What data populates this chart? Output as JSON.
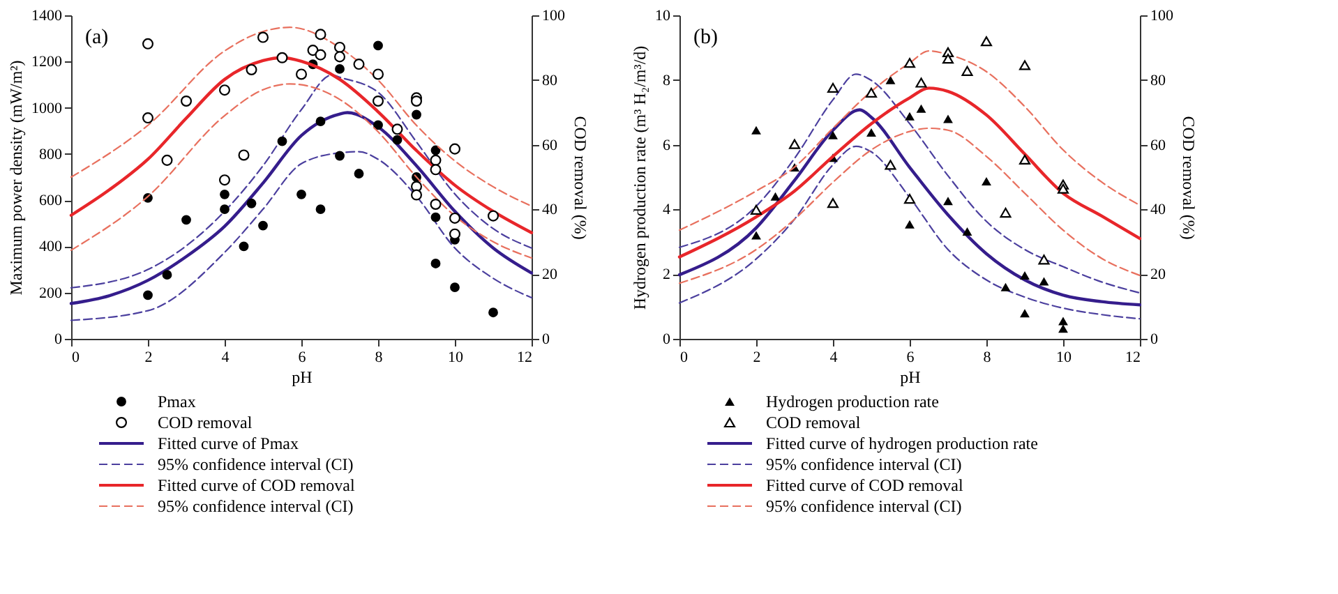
{
  "chart_data": [
    {
      "type": "scatter",
      "annotations": [
        "(a)"
      ],
      "xlabel": "pH",
      "ylabel": "Maximum power density (mW/m²)",
      "y2label": "COD removal (%)",
      "xlim": [
        0,
        12
      ],
      "xticks": [
        0,
        2,
        4,
        6,
        8,
        10,
        12
      ],
      "ylim": [
        0,
        1400
      ],
      "yticks": [
        0,
        200,
        400,
        600,
        800,
        1000,
        1200,
        1400
      ],
      "y2lim": [
        0,
        100
      ],
      "y2ticks": [
        0,
        20,
        40,
        60,
        80,
        100
      ],
      "grid": false,
      "legend": "bottom",
      "series": [
        {
          "name": "Pmax",
          "color": "#000000",
          "marker": "circle",
          "x": [
            2,
            2,
            2.5,
            3,
            4,
            4,
            4.5,
            4.7,
            5,
            5.5,
            6,
            6.3,
            6.5,
            6.5,
            7,
            7,
            7.5,
            8,
            8,
            8.5,
            9,
            9,
            9.5,
            9.5,
            9.5,
            10,
            10,
            11
          ],
          "values": [
            610,
            189,
            277,
            515,
            625,
            561,
            400,
            586,
            490,
            855,
            625,
            1188,
            941,
            561,
            792,
            1168,
            715,
            1269,
            925,
            861,
            970,
            700,
            816,
            526,
            326,
            429,
            223,
            114
          ]
        },
        {
          "name": "COD removal",
          "color": "#000000",
          "marker": "circle",
          "axis": "y2",
          "x": [
            2,
            2,
            2.5,
            3,
            4,
            4,
            4.5,
            4.7,
            5,
            5.5,
            6,
            6.3,
            6.5,
            6.5,
            7,
            7,
            7.5,
            8,
            8,
            8.5,
            9,
            9,
            9,
            9,
            9.5,
            9.5,
            9.5,
            10,
            10,
            10,
            11
          ],
          "values": [
            91.2,
            68.3,
            55.2,
            73.5,
            76.9,
            49.1,
            56.8,
            83.2,
            93.2,
            86.9,
            81.8,
            89.2,
            94.1,
            87.8,
            90.1,
            87.2,
            84.9,
            81.8,
            73.5,
            64.8,
            74.5,
            73.5,
            47.1,
            44.5,
            55.2,
            52.3,
            41.6,
            58.7,
            37.3,
            32.4,
            38
          ]
        },
        {
          "type": "line",
          "name": "Fitted curve of Pmax",
          "color": "#351d8c",
          "line_style": "solid",
          "x": [
            0,
            1,
            2,
            3,
            4,
            5,
            6,
            7,
            7.2,
            8,
            9,
            10,
            11,
            12
          ],
          "values": [
            153,
            187,
            253,
            356,
            487,
            674,
            880,
            973,
            979,
            917,
            749,
            552,
            393,
            285
          ]
        },
        {
          "type": "line",
          "name": "95% confidence interval (CI)",
          "color": "#4b3f9e",
          "line_style": "dashed",
          "x": [
            0,
            2,
            4,
            5,
            6,
            6.8,
            7,
            8,
            9,
            10,
            11,
            12
          ],
          "values": [
            221,
            300,
            552,
            749,
            992,
            1142,
            1132,
            1067,
            852,
            627,
            477,
            393
          ]
        },
        {
          "type": "line",
          "color": "#4b3f9e",
          "line_style": "dashed",
          "x": [
            0,
            2,
            4,
            5,
            6,
            7,
            7.5,
            8,
            9,
            10,
            11,
            12
          ],
          "values": [
            80,
            122,
            374,
            561,
            758,
            805,
            810,
            777,
            617,
            393,
            262,
            178
          ]
        },
        {
          "type": "line",
          "name": "Fitted curve of COD removal",
          "color": "#e8262a",
          "line_style": "solid",
          "axis": "y2",
          "x": [
            0,
            1,
            2,
            3,
            4,
            5,
            5.5,
            6,
            7,
            8,
            9,
            10,
            11,
            12
          ],
          "values": [
            38.2,
            46.1,
            55.5,
            68.2,
            80.2,
            86,
            86.9,
            85.8,
            80.2,
            70.2,
            58.2,
            47.5,
            39.4,
            32.8
          ]
        },
        {
          "type": "line",
          "name": "95% confidence interval (CI)",
          "color": "#e8705e",
          "line_style": "dashed",
          "axis": "y2",
          "x": [
            0,
            2,
            4,
            5,
            5.7,
            7,
            8,
            9,
            10,
            11,
            12
          ],
          "values": [
            50,
            66,
            89,
            95,
            96.3,
            90,
            80,
            66,
            55,
            47,
            41
          ]
        },
        {
          "type": "line",
          "color": "#e8705e",
          "line_style": "dashed",
          "axis": "y2",
          "x": [
            0,
            2,
            4,
            5,
            5.7,
            7,
            8,
            9,
            10,
            11,
            12
          ],
          "values": [
            27.4,
            44,
            69,
            77,
            78.8,
            74,
            64,
            50,
            38,
            30,
            25
          ]
        }
      ]
    },
    {
      "type": "scatter",
      "annotations": [
        "(b)"
      ],
      "xlabel": "pH",
      "ylabel": "Hydrogen production rate (m³ H₂/m³/d)",
      "y2label": "COD removal (%)",
      "xlim": [
        0,
        12
      ],
      "xticks": [
        0,
        2,
        4,
        6,
        8,
        10,
        12
      ],
      "ylim": [
        0,
        10
      ],
      "yticks": [
        0,
        2,
        4,
        6,
        8,
        10
      ],
      "y2lim": [
        0,
        100
      ],
      "y2ticks": [
        0,
        20,
        40,
        60,
        80,
        100
      ],
      "grid": false,
      "legend": "bottom",
      "series": [
        {
          "name": "Hydrogen production rate",
          "color": "#000000",
          "marker": "triangle",
          "x": [
            2,
            2,
            2.5,
            3,
            4,
            4,
            5,
            5.5,
            6,
            6,
            6.3,
            7,
            7,
            7.5,
            8,
            8.5,
            9,
            9,
            9.5,
            10,
            10
          ],
          "values": [
            6.45,
            3.2,
            4.4,
            5.3,
            6.3,
            5.6,
            6.38,
            8,
            6.88,
            3.54,
            7.12,
            6.8,
            4.26,
            3.32,
            4.87,
            1.6,
            1.96,
            0.79,
            1.78,
            0.55,
            0.32
          ]
        },
        {
          "name": "COD removal",
          "color": "#000000",
          "marker": "triangle",
          "axis": "y2",
          "x": [
            2,
            3,
            4,
            4,
            5,
            5.5,
            6,
            6,
            6.3,
            7,
            7,
            7.5,
            8,
            8.5,
            9,
            9,
            9.5,
            10,
            10
          ],
          "values": [
            39.9,
            60.2,
            77.6,
            42,
            76.1,
            53.8,
            85.3,
            43.3,
            79.2,
            88.6,
            86.6,
            82.8,
            92,
            39,
            84.6,
            55.4,
            24.5,
            47.7,
            46.4
          ]
        },
        {
          "type": "line",
          "name": "Fitted curve of hydrogen production rate",
          "color": "#351d8c",
          "line_style": "solid",
          "x": [
            0,
            2,
            3,
            4,
            4.7,
            5,
            6,
            7,
            8,
            9,
            10,
            11,
            12
          ],
          "values": [
            1.98,
            3.43,
            4.9,
            6.45,
            7.08,
            6.85,
            5.3,
            3.83,
            2.63,
            1.82,
            1.35,
            1.15,
            1.05
          ]
        },
        {
          "type": "line",
          "name": "95% confidence interval (CI)",
          "color": "#4b3f9e",
          "line_style": "dashed",
          "x": [
            0,
            2,
            3,
            4,
            4.6,
            5,
            6,
            7,
            8,
            9,
            10,
            11,
            12
          ],
          "values": [
            2.83,
            4.1,
            5.58,
            7.39,
            8.18,
            7.99,
            6.65,
            5.04,
            3.63,
            2.76,
            2.23,
            1.76,
            1.42
          ]
        },
        {
          "type": "line",
          "color": "#4b3f9e",
          "line_style": "dashed",
          "x": [
            0,
            2,
            3,
            4,
            4.6,
            5,
            6,
            7,
            8,
            9,
            10,
            11,
            12
          ],
          "values": [
            1.11,
            2.47,
            3.7,
            5.38,
            5.95,
            5.78,
            4.37,
            2.76,
            1.82,
            1.29,
            0.95,
            0.75,
            0.62
          ]
        },
        {
          "type": "line",
          "name": "Fitted curve of COD removal",
          "color": "#e8262a",
          "line_style": "solid",
          "axis": "y2",
          "x": [
            0,
            2,
            3,
            4,
            5,
            6,
            6.5,
            7,
            8,
            9,
            10,
            11,
            12
          ],
          "values": [
            25.3,
            37.7,
            45.7,
            56.4,
            66.5,
            74.5,
            77.5,
            76.5,
            69.2,
            57.1,
            45,
            38,
            31
          ]
        },
        {
          "type": "line",
          "name": "95% confidence interval (CI)",
          "color": "#e8705e",
          "line_style": "dashed",
          "axis": "y2",
          "x": [
            0,
            2,
            3,
            4,
            5,
            6,
            6.5,
            7,
            8,
            9,
            10,
            11,
            12
          ],
          "values": [
            33.6,
            45.7,
            53.1,
            65.1,
            76.5,
            85.3,
            89,
            87.9,
            82.6,
            71.8,
            58.4,
            48.5,
            41.3
          ]
        },
        {
          "type": "line",
          "color": "#e8705e",
          "line_style": "dashed",
          "axis": "y2",
          "x": [
            0,
            2,
            3,
            4,
            5,
            6,
            6.5,
            7,
            8,
            9,
            10,
            11,
            12
          ],
          "values": [
            17.2,
            27.6,
            37,
            48.4,
            58.4,
            64.1,
            65.1,
            64.5,
            56.4,
            45,
            33.6,
            24.9,
            19.6
          ]
        }
      ]
    }
  ]
}
